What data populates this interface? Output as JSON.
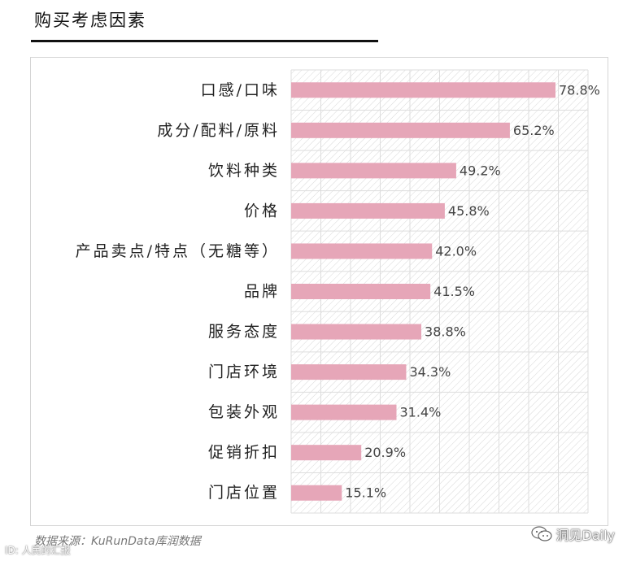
{
  "header": {
    "title": "购买考虑因素"
  },
  "chart_data": {
    "type": "bar",
    "orientation": "horizontal",
    "categories": [
      "口感/口味",
      "成分/配料/原料",
      "饮料种类",
      "价格",
      "产品卖点/特点（无糖等）",
      "品牌",
      "服务态度",
      "门店环境",
      "包装外观",
      "促销折扣",
      "门店位置"
    ],
    "values": [
      78.8,
      65.2,
      49.2,
      45.8,
      42.0,
      41.5,
      38.8,
      34.3,
      31.4,
      20.9,
      15.1
    ],
    "value_labels": [
      "78.8%",
      "65.2%",
      "49.2%",
      "45.8%",
      "42.0%",
      "41.5%",
      "38.8%",
      "34.3%",
      "31.4%",
      "20.9%",
      "15.1%"
    ],
    "unit": "%",
    "xlim": [
      0,
      90
    ],
    "grid": true,
    "bar_color": "#e6a6b8"
  },
  "source": "数据来源：KuRunData库润数据",
  "watermarks": {
    "left": "ID: 人民的汇报",
    "right": "洞见Daily",
    "right_icon": "wechat-icon"
  }
}
